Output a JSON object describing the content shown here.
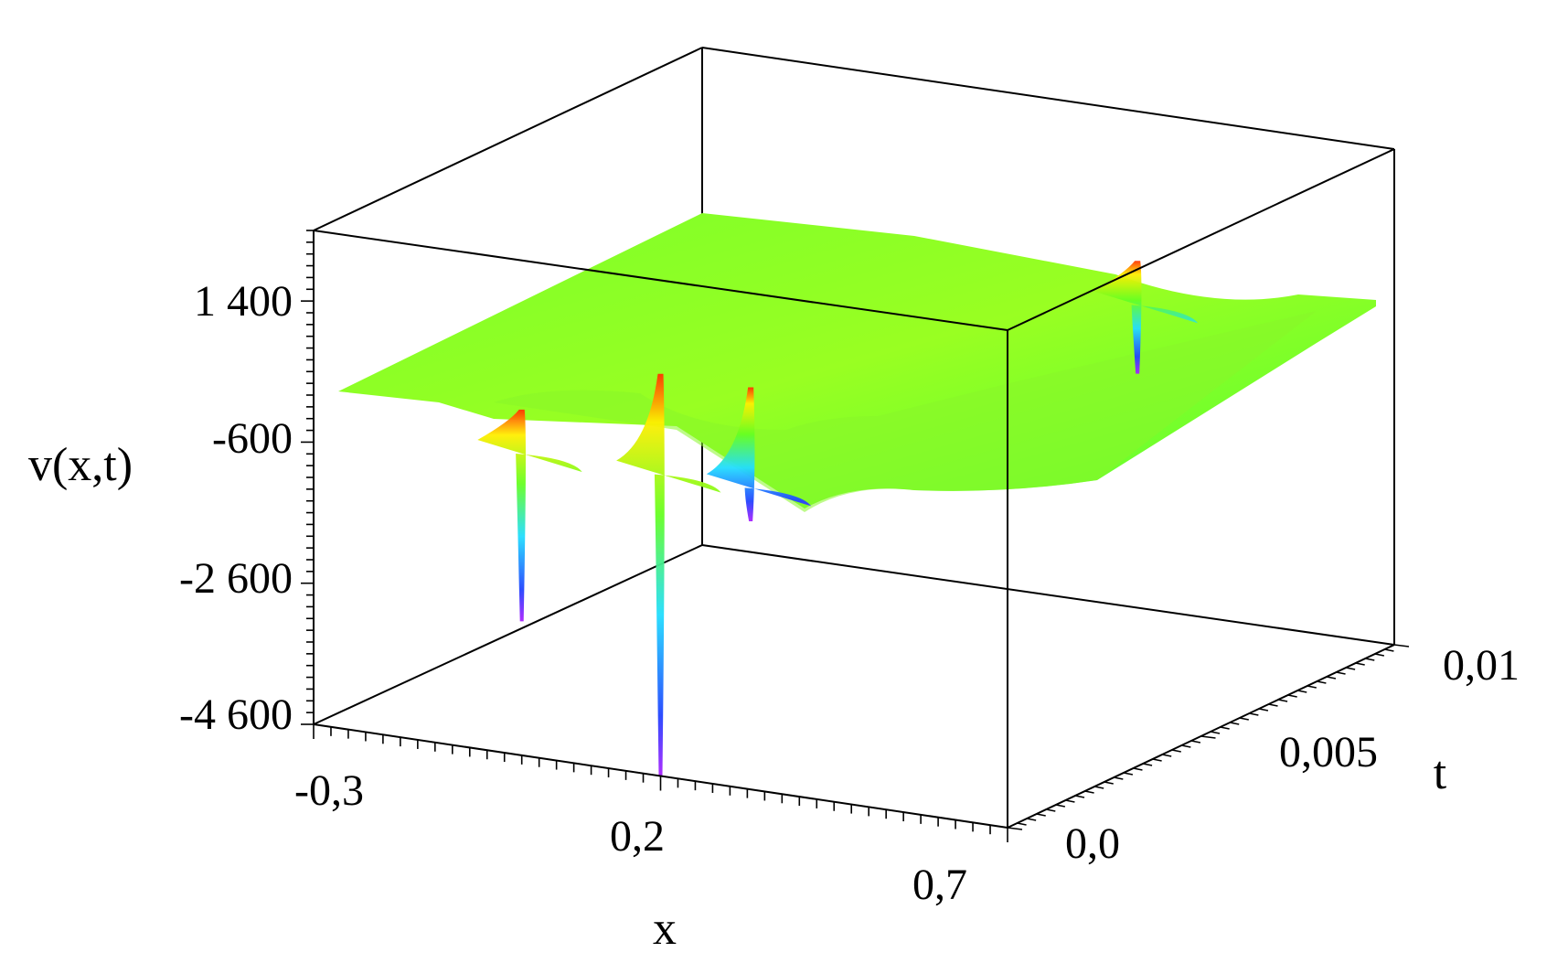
{
  "chart_data": {
    "type": "surface3d",
    "xlabel": "x",
    "ylabel": "t",
    "zlabel": "v(x,t)",
    "x_range": [
      -0.3,
      0.7
    ],
    "t_range": [
      0.0,
      0.01
    ],
    "z_range": [
      -4600,
      2400
    ],
    "x_ticks": [
      "-0,3",
      "0,2",
      "0,7"
    ],
    "t_ticks": [
      "0,0",
      "0,005",
      "0,01"
    ],
    "z_ticks": [
      "1 400",
      "-600",
      "-2 600",
      "-4 600"
    ],
    "z_tick_values": [
      1400,
      -600,
      -2600,
      -4600
    ],
    "baseline_level": 0,
    "colormap": "rainbow",
    "surface_base_color": "#66ff22",
    "spikes": [
      {
        "x": 0.0,
        "t": 0.0,
        "min": -2700,
        "max": 300
      },
      {
        "x": 0.2,
        "t": 0.0,
        "min": -4600,
        "max": 1100
      },
      {
        "x": 0.33,
        "t": 0.0,
        "min": -800,
        "max": 1100
      },
      {
        "x": 0.33,
        "t": 0.01,
        "min": -1300,
        "max": 300
      }
    ]
  }
}
